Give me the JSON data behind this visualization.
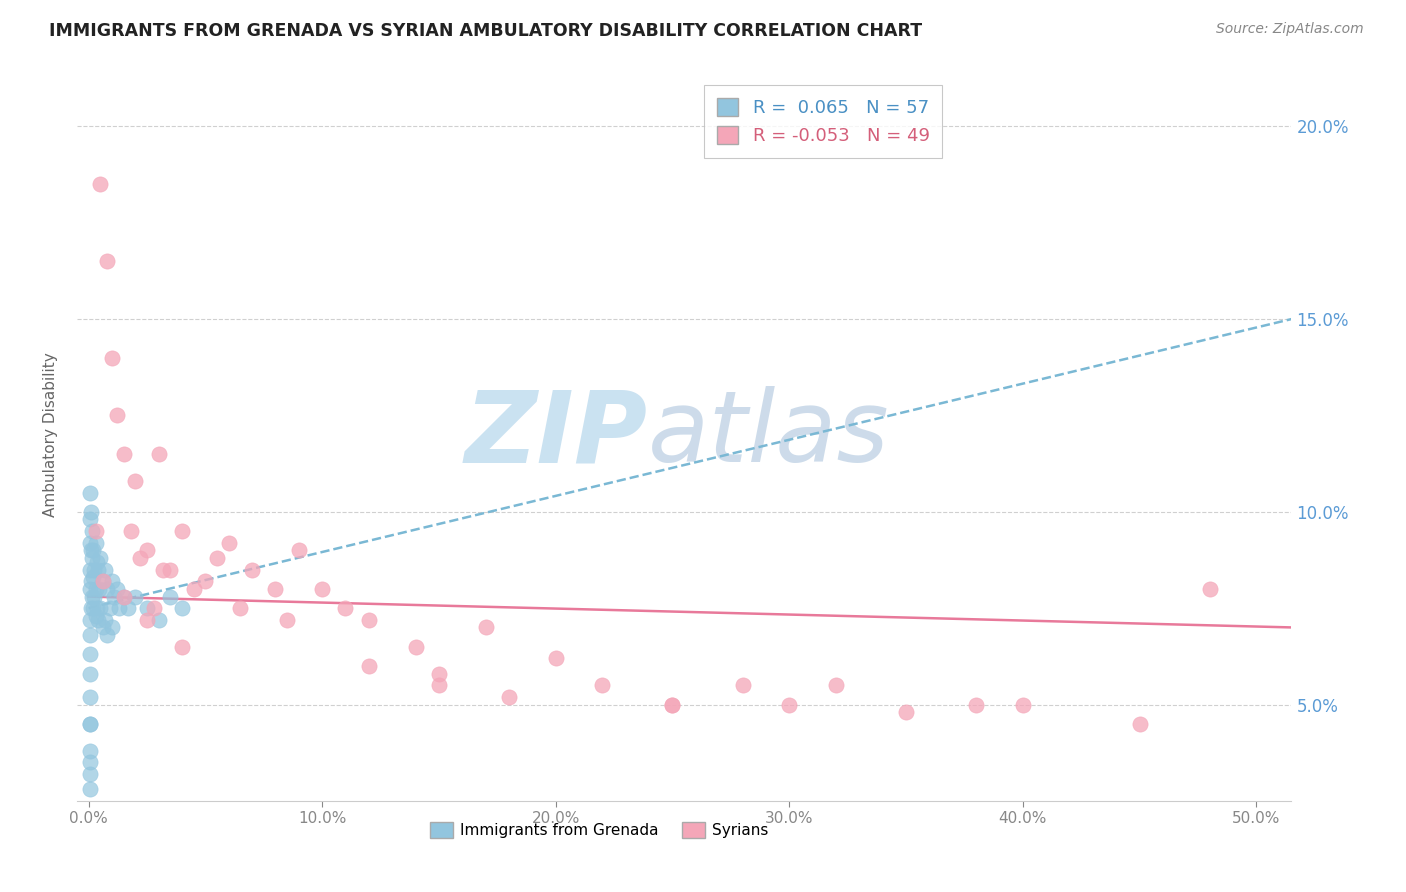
{
  "title": "IMMIGRANTS FROM GRENADA VS SYRIAN AMBULATORY DISABILITY CORRELATION CHART",
  "source_text": "Source: ZipAtlas.com",
  "ylabel": "Ambulatory Disability",
  "xlabel": "",
  "x_ticks": [
    0.0,
    10.0,
    20.0,
    30.0,
    40.0,
    50.0
  ],
  "x_tick_labels": [
    "0.0%",
    "10.0%",
    "20.0%",
    "30.0%",
    "40.0%",
    "50.0%"
  ],
  "y_ticks_right": [
    5.0,
    10.0,
    15.0,
    20.0
  ],
  "y_tick_labels_right": [
    "5.0%",
    "10.0%",
    "15.0%",
    "20.0%"
  ],
  "xlim": [
    -0.5,
    51.5
  ],
  "ylim": [
    2.5,
    21.5
  ],
  "blue_R": 0.065,
  "blue_N": 57,
  "pink_R": -0.053,
  "pink_N": 49,
  "blue_color": "#92c5de",
  "pink_color": "#f4a6b8",
  "blue_line_color": "#7ab8d4",
  "pink_line_color": "#e8799a",
  "watermark_zip": "ZIP",
  "watermark_atlas": "atlas",
  "legend_label_blue": "Immigrants from Grenada",
  "legend_label_pink": "Syrians",
  "blue_scatter_x": [
    0.05,
    0.05,
    0.05,
    0.05,
    0.05,
    0.1,
    0.1,
    0.1,
    0.1,
    0.15,
    0.15,
    0.15,
    0.2,
    0.2,
    0.2,
    0.25,
    0.25,
    0.3,
    0.3,
    0.3,
    0.35,
    0.35,
    0.4,
    0.4,
    0.45,
    0.5,
    0.5,
    0.6,
    0.6,
    0.7,
    0.7,
    0.8,
    0.8,
    0.9,
    1.0,
    1.0,
    1.1,
    1.2,
    1.3,
    1.5,
    1.7,
    2.0,
    2.5,
    3.0,
    3.5,
    4.0,
    0.05,
    0.05,
    0.05,
    0.05,
    0.05,
    0.05,
    0.05,
    0.05,
    0.05,
    0.08,
    0.08
  ],
  "blue_scatter_y": [
    10.5,
    9.8,
    9.2,
    8.5,
    8.0,
    10.0,
    9.0,
    8.2,
    7.5,
    9.5,
    8.8,
    7.8,
    9.0,
    8.3,
    7.5,
    8.5,
    7.8,
    9.2,
    8.0,
    7.3,
    8.7,
    7.5,
    8.5,
    7.2,
    8.0,
    8.8,
    7.5,
    8.2,
    7.0,
    8.5,
    7.2,
    8.0,
    6.8,
    7.5,
    8.2,
    7.0,
    7.8,
    8.0,
    7.5,
    7.8,
    7.5,
    7.8,
    7.5,
    7.2,
    7.8,
    7.5,
    7.2,
    6.8,
    6.3,
    5.8,
    5.2,
    4.5,
    3.8,
    3.2,
    2.8,
    4.5,
    3.5
  ],
  "pink_scatter_x": [
    0.5,
    0.8,
    1.0,
    1.2,
    1.5,
    1.8,
    2.0,
    2.5,
    3.0,
    3.5,
    4.0,
    5.0,
    5.5,
    6.0,
    7.0,
    8.0,
    9.0,
    10.0,
    11.0,
    12.0,
    14.0,
    15.0,
    17.0,
    20.0,
    22.0,
    25.0,
    28.0,
    30.0,
    35.0,
    40.0,
    45.0,
    48.0,
    2.2,
    2.8,
    3.2,
    4.5,
    6.5,
    8.5,
    12.0,
    15.0,
    18.0,
    25.0,
    32.0,
    38.0,
    0.3,
    0.6,
    1.5,
    2.5,
    4.0
  ],
  "pink_scatter_y": [
    18.5,
    16.5,
    14.0,
    12.5,
    11.5,
    9.5,
    10.8,
    9.0,
    11.5,
    8.5,
    9.5,
    8.2,
    8.8,
    9.2,
    8.5,
    8.0,
    9.0,
    8.0,
    7.5,
    7.2,
    6.5,
    5.8,
    7.0,
    6.2,
    5.5,
    5.0,
    5.5,
    5.0,
    4.8,
    5.0,
    4.5,
    8.0,
    8.8,
    7.5,
    8.5,
    8.0,
    7.5,
    7.2,
    6.0,
    5.5,
    5.2,
    5.0,
    5.5,
    5.0,
    9.5,
    8.2,
    7.8,
    7.2,
    6.5
  ],
  "blue_line_x0": 0.0,
  "blue_line_x1": 51.5,
  "blue_line_y0": 7.5,
  "blue_line_y1": 15.0,
  "pink_line_x0": 0.0,
  "pink_line_x1": 51.5,
  "pink_line_y0": 7.8,
  "pink_line_y1": 7.0
}
